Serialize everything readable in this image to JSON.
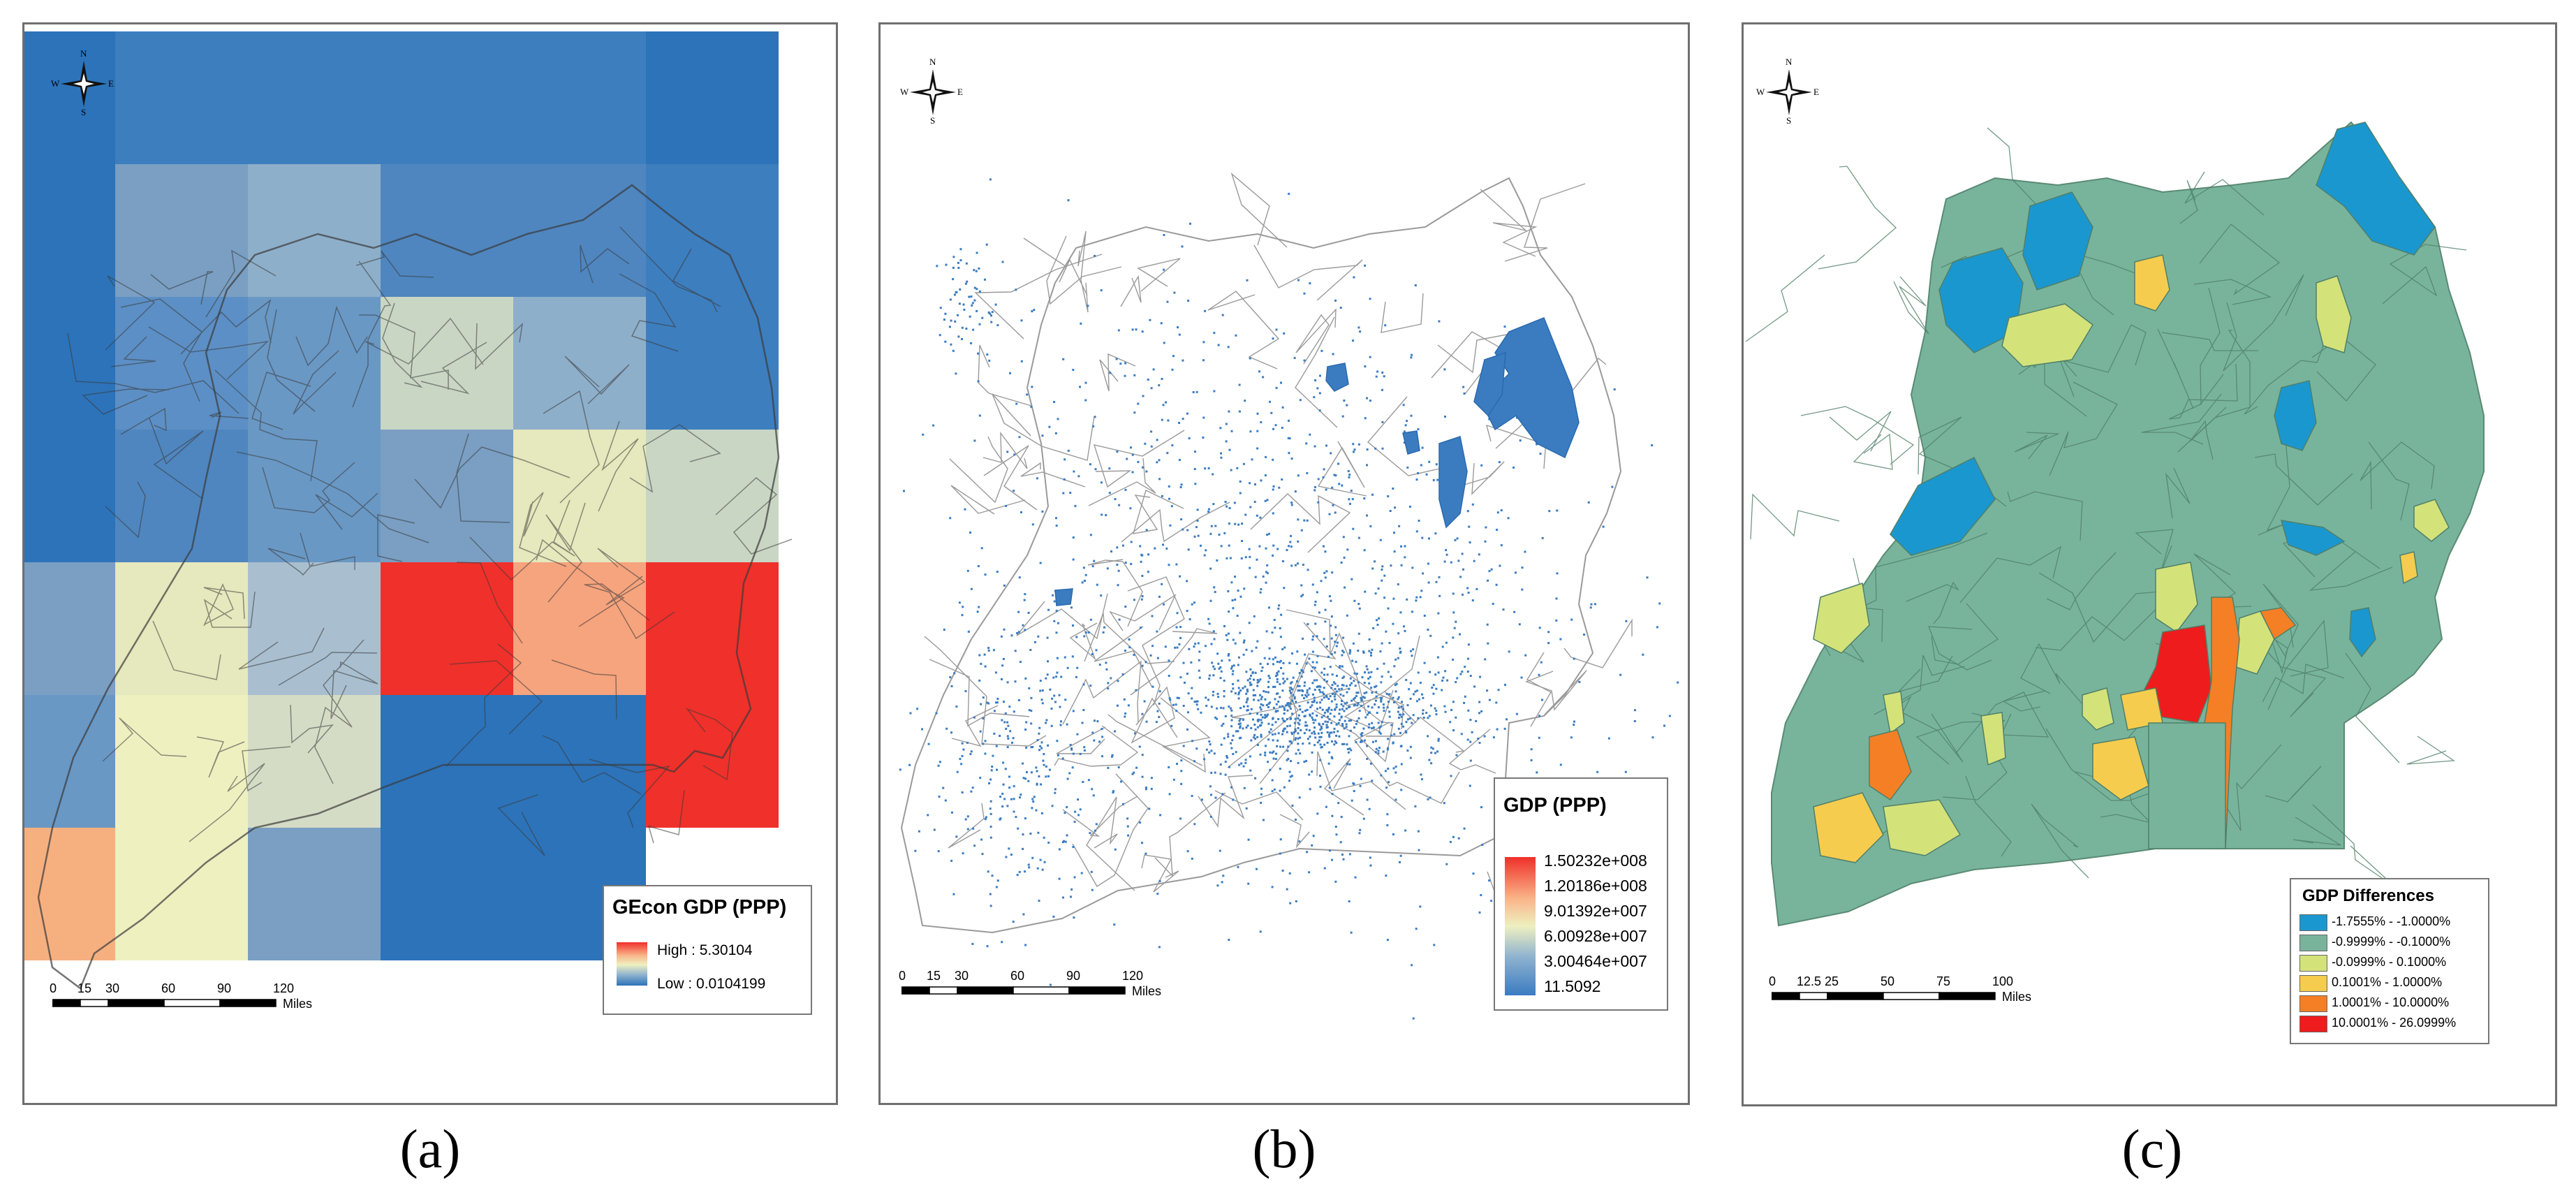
{
  "panels": [
    {
      "id": "a",
      "caption": "(a)",
      "legend": {
        "title": "GEcon GDP (PPP)",
        "high": "High : 5.30104",
        "low": "Low : 0.0104199"
      },
      "scale": {
        "ticks": [
          "0",
          "15",
          "30",
          "60",
          "90",
          "120"
        ],
        "units": "Miles"
      },
      "compass": {
        "n": "N",
        "s": "S",
        "e": "E",
        "w": "W"
      }
    },
    {
      "id": "b",
      "caption": "(b)",
      "legend": {
        "title": "GDP (PPP)",
        "entries": [
          "1.50232e+008",
          "1.20186e+008",
          "9.01392e+007",
          "6.00928e+007",
          "3.00464e+007",
          "11.5092"
        ]
      },
      "scale": {
        "ticks": [
          "0",
          "15",
          "30",
          "60",
          "90",
          "120"
        ],
        "units": "Miles"
      },
      "compass": {
        "n": "N",
        "s": "S",
        "e": "E",
        "w": "W"
      }
    },
    {
      "id": "c",
      "caption": "(c)",
      "legend": {
        "title": "GDP Differences",
        "entries": [
          {
            "label": "-1.7555% - -1.0000%",
            "color": "#1b97cf"
          },
          {
            "label": "-0.9999% - -0.1000%",
            "color": "#78b49c"
          },
          {
            "label": "-0.0999% - 0.1000%",
            "color": "#d4e27a"
          },
          {
            "label": "0.1001% - 1.0000%",
            "color": "#f6cc4e"
          },
          {
            "label": "1.0001% - 10.0000%",
            "color": "#f57f25"
          },
          {
            "label": "10.0001% - 26.0999%",
            "color": "#ee1c1c"
          }
        ]
      },
      "scale": {
        "ticks": [
          "0",
          "12.5",
          "25",
          "50",
          "75",
          "100"
        ],
        "units": "Miles"
      },
      "compass": {
        "n": "N",
        "s": "S",
        "e": "E",
        "w": "W"
      }
    }
  ],
  "colors": {
    "gecon_low": "#2c73b9",
    "gecon_mid": "#eef0c0",
    "gecon_high": "#f0302a",
    "gdp_points": "#3b7cc1",
    "diff_base": "#78b49c"
  }
}
